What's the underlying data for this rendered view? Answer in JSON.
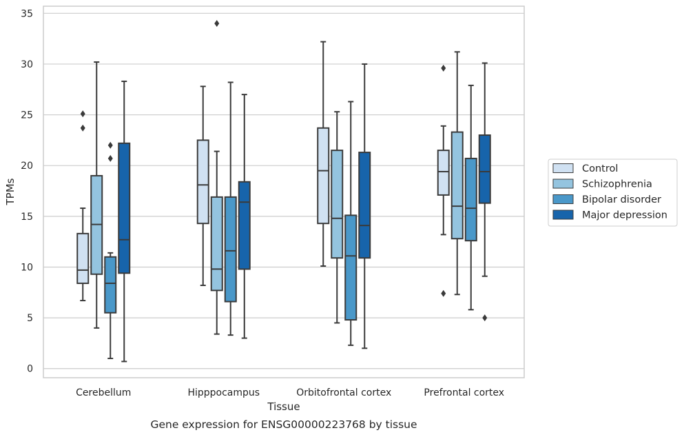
{
  "caption": "Gene expression for ENSG00000223768 by tissue",
  "chart_data": {
    "type": "box",
    "xlabel": "Tissue",
    "ylabel": "TPMs",
    "ylim": [
      -0.9,
      35.7
    ],
    "yticks": [
      0,
      5,
      10,
      15,
      20,
      25,
      30,
      35
    ],
    "grid": "horizontal",
    "legend_position": "right",
    "categories": [
      "Cerebellum",
      "Hipppocampus",
      "Orbitofrontal cortex",
      "Prefrontal cortex"
    ],
    "series": [
      {
        "name": "Control",
        "color": "#d0e1f2",
        "boxes": [
          {
            "whisker_low": 6.7,
            "q1": 8.4,
            "median": 9.7,
            "q3": 13.3,
            "whisker_high": 15.8,
            "outliers": [
              23.7,
              25.1
            ]
          },
          {
            "whisker_low": 8.2,
            "q1": 14.3,
            "median": 18.1,
            "q3": 22.5,
            "whisker_high": 27.8,
            "outliers": []
          },
          {
            "whisker_low": 10.1,
            "q1": 14.3,
            "median": 19.5,
            "q3": 23.7,
            "whisker_high": 32.2,
            "outliers": []
          },
          {
            "whisker_low": 13.2,
            "q1": 17.1,
            "median": 19.4,
            "q3": 21.5,
            "whisker_high": 23.9,
            "outliers": [
              29.6,
              7.4
            ]
          }
        ]
      },
      {
        "name": "Schizophrenia",
        "color": "#94c4df",
        "boxes": [
          {
            "whisker_low": 4.0,
            "q1": 9.3,
            "median": 14.2,
            "q3": 19.0,
            "whisker_high": 30.2,
            "outliers": []
          },
          {
            "whisker_low": 3.4,
            "q1": 7.7,
            "median": 9.8,
            "q3": 16.9,
            "whisker_high": 21.4,
            "outliers": [
              34.0
            ]
          },
          {
            "whisker_low": 4.5,
            "q1": 10.9,
            "median": 14.8,
            "q3": 21.5,
            "whisker_high": 25.3,
            "outliers": []
          },
          {
            "whisker_low": 7.3,
            "q1": 12.8,
            "median": 16.0,
            "q3": 23.3,
            "whisker_high": 31.2,
            "outliers": []
          }
        ]
      },
      {
        "name": "Bipolar disorder",
        "color": "#4a98c9",
        "boxes": [
          {
            "whisker_low": 1.0,
            "q1": 5.5,
            "median": 8.4,
            "q3": 11.0,
            "whisker_high": 11.4,
            "outliers": [
              20.7,
              22.0
            ]
          },
          {
            "whisker_low": 3.3,
            "q1": 6.6,
            "median": 11.6,
            "q3": 16.9,
            "whisker_high": 28.2,
            "outliers": []
          },
          {
            "whisker_low": 2.3,
            "q1": 4.8,
            "median": 11.1,
            "q3": 15.1,
            "whisker_high": 26.3,
            "outliers": []
          },
          {
            "whisker_low": 5.8,
            "q1": 12.6,
            "median": 15.8,
            "q3": 20.7,
            "whisker_high": 27.9,
            "outliers": []
          }
        ]
      },
      {
        "name": "Major depression",
        "color": "#1764ab",
        "boxes": [
          {
            "whisker_low": 0.7,
            "q1": 9.4,
            "median": 12.7,
            "q3": 22.2,
            "whisker_high": 28.3,
            "outliers": []
          },
          {
            "whisker_low": 3.0,
            "q1": 9.8,
            "median": 16.4,
            "q3": 18.4,
            "whisker_high": 27.0,
            "outliers": []
          },
          {
            "whisker_low": 2.0,
            "q1": 10.9,
            "median": 14.1,
            "q3": 21.3,
            "whisker_high": 30.0,
            "outliers": []
          },
          {
            "whisker_low": 9.1,
            "q1": 16.3,
            "median": 19.4,
            "q3": 23.0,
            "whisker_high": 30.1,
            "outliers": [
              5.0
            ]
          }
        ]
      }
    ]
  }
}
